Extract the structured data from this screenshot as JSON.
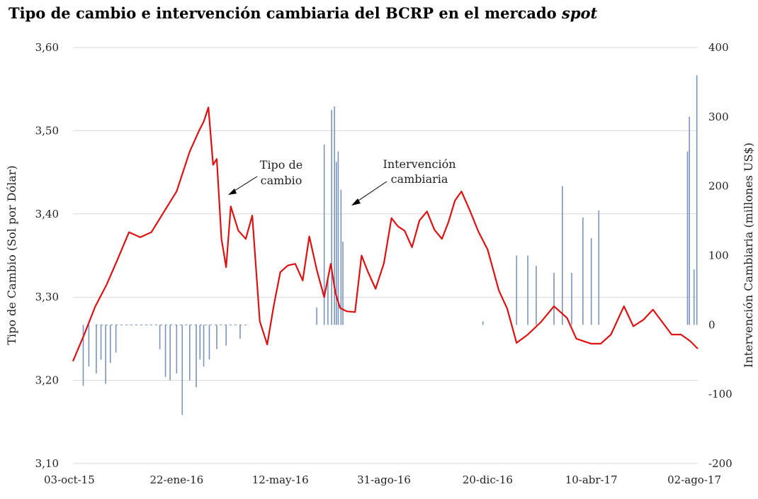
{
  "chart_data": {
    "type": "line+bar",
    "title_main": "Tipo de cambio e intervención cambiaria del BCRP en el mercado",
    "title_italic": "spot",
    "ylabel_left": "Tipo de Cambio (Sol por Dólar)",
    "ylabel_right": "Intervención Cambiaria (millones US$)",
    "ylim_left": [
      3.1,
      3.6
    ],
    "ylim_right": [
      -200,
      400
    ],
    "left_ticks": [
      "3,10",
      "3,20",
      "3,30",
      "3,40",
      "3,50",
      "3,60"
    ],
    "right_ticks": [
      "-200",
      "-100",
      "0",
      "100",
      "200",
      "300",
      "400"
    ],
    "x_ticks": [
      "03-oct-15",
      "22-ene-16",
      "12-may-16",
      "31-ago-16",
      "20-dic-16",
      "10-abr-17",
      "02-ago-17"
    ],
    "grid": true,
    "colors": {
      "line": "#dd1111",
      "bars": "#7a94bb",
      "grid": "#d9d9d9"
    },
    "annotations": [
      {
        "id": "tc",
        "line1": "Tipo de",
        "line2": "cambio"
      },
      {
        "id": "int",
        "line1": "Intervención",
        "line2": "cambiaria"
      }
    ],
    "series": [
      {
        "name": "Tipo de cambio",
        "kind": "line",
        "axis": "left",
        "x": [
          "03-oct-15",
          "15-oct-15",
          "27-oct-15",
          "08-nov-15",
          "20-nov-15",
          "02-dic-15",
          "14-dic-15",
          "26-dic-15",
          "07-ene-16",
          "22-ene-16",
          "05-feb-16",
          "15-feb-16",
          "20-feb-16",
          "25-feb-16",
          "01-mar-16",
          "05-mar-16",
          "10-mar-16",
          "15-mar-16",
          "20-mar-16",
          "28-mar-16",
          "05-abr-16",
          "12-abr-16",
          "20-abr-16",
          "28-abr-16",
          "05-may-16",
          "12-may-16",
          "20-may-16",
          "28-may-16",
          "05-jun-16",
          "12-jun-16",
          "20-jun-16",
          "28-jun-16",
          "05-jul-16",
          "10-jul-16",
          "15-jul-16",
          "22-jul-16",
          "31-jul-16",
          "07-ago-16",
          "14-ago-16",
          "22-ago-16",
          "31-ago-16",
          "08-sep-16",
          "15-sep-16",
          "22-sep-16",
          "30-sep-16",
          "08-oct-16",
          "16-oct-16",
          "24-oct-16",
          "01-nov-16",
          "08-nov-16",
          "15-nov-16",
          "22-nov-16",
          "01-dic-16",
          "10-dic-16",
          "20-dic-16",
          "01-ene-17",
          "10-ene-17",
          "20-ene-17",
          "01-feb-17",
          "15-feb-17",
          "01-mar-17",
          "15-mar-17",
          "25-mar-17",
          "10-abr-17",
          "20-abr-17",
          "01-may-17",
          "15-may-17",
          "25-may-17",
          "05-jun-17",
          "15-jun-17",
          "25-jun-17",
          "05-jul-17",
          "15-jul-17",
          "25-jul-17",
          "02-ago-17"
        ],
        "values": [
          3.223,
          3.255,
          3.289,
          3.315,
          3.346,
          3.378,
          3.372,
          3.378,
          3.4,
          3.427,
          3.475,
          3.5,
          3.511,
          3.528,
          3.459,
          3.466,
          3.37,
          3.336,
          3.409,
          3.38,
          3.37,
          3.398,
          3.271,
          3.243,
          3.29,
          3.33,
          3.338,
          3.34,
          3.32,
          3.373,
          3.333,
          3.3,
          3.34,
          3.305,
          3.287,
          3.283,
          3.282,
          3.35,
          3.33,
          3.31,
          3.341,
          3.395,
          3.385,
          3.38,
          3.36,
          3.392,
          3.403,
          3.381,
          3.37,
          3.39,
          3.416,
          3.427,
          3.404,
          3.379,
          3.357,
          3.308,
          3.286,
          3.245,
          3.255,
          3.27,
          3.289,
          3.275,
          3.25,
          3.244,
          3.244,
          3.255,
          3.289,
          3.265,
          3.273,
          3.285,
          3.27,
          3.255,
          3.255,
          3.247,
          3.238
        ]
      },
      {
        "name": "Intervención cambiaria",
        "kind": "bar",
        "axis": "right",
        "x": [
          "14-oct-15",
          "20-oct-15",
          "28-oct-15",
          "02-nov-15",
          "07-nov-15",
          "12-nov-15",
          "18-nov-15",
          "04-ene-16",
          "10-ene-16",
          "15-ene-16",
          "22-ene-16",
          "28-ene-16",
          "05-feb-16",
          "12-feb-16",
          "16-feb-16",
          "20-feb-16",
          "26-feb-16",
          "05-mar-16",
          "15-mar-16",
          "30-mar-16",
          "20-jun-16",
          "28-jun-16",
          "02-jul-16",
          "06-jul-16",
          "09-jul-16",
          "11-jul-16",
          "13-jul-16",
          "16-jul-16",
          "18-jul-16",
          "15-dic-16",
          "20-ene-17",
          "01-feb-17",
          "10-feb-17",
          "01-mar-17",
          "10-mar-17",
          "20-mar-17",
          "01-abr-17",
          "10-abr-17",
          "18-abr-17",
          "22-jul-17",
          "24-jul-17",
          "29-jul-17",
          "01-ago-17"
        ],
        "values": [
          -88,
          -60,
          -70,
          -50,
          -85,
          -55,
          -40,
          -35,
          -75,
          -80,
          -70,
          -130,
          -80,
          -90,
          -50,
          -60,
          -50,
          -35,
          -30,
          -20,
          25,
          260,
          65,
          310,
          315,
          235,
          250,
          195,
          120,
          5,
          100,
          100,
          85,
          75,
          200,
          75,
          155,
          125,
          165,
          250,
          300,
          80,
          360
        ]
      }
    ]
  }
}
